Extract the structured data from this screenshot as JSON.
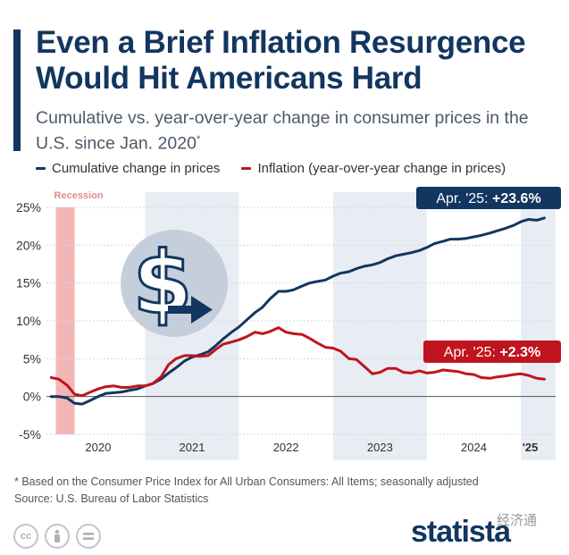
{
  "header": {
    "title": "Even a Brief Inflation Resurgence Would Hit Americans Hard",
    "subtitle": "Cumulative vs. year-over-year change in consumer prices in the U.S. since Jan. 2020",
    "subtitle_mark": "*"
  },
  "footer": {
    "note": "* Based on the Consumer Price Index for All Urban Consumers: All Items; seasonally adjusted",
    "source": "Source: U.S. Bureau of Labor Statistics",
    "brand": "statista",
    "watermark": "经济通"
  },
  "icons": [
    "creative-commons-icon",
    "attribution-icon",
    "no-derivatives-icon",
    "dollar-arrow-icon",
    "brand-logo-icon"
  ],
  "chart_data": {
    "type": "line",
    "title": "Even a Brief Inflation Resurgence Would Hit Americans Hard",
    "subtitle": "Cumulative vs. year-over-year change in consumer prices in the U.S. since Jan. 2020*",
    "y_ticks": [
      "25%",
      "20%",
      "15%",
      "10%",
      "5%",
      "0%",
      "-5%"
    ],
    "y_tick_values": [
      25,
      20,
      15,
      10,
      5,
      0,
      -5
    ],
    "ylim": [
      -5,
      25
    ],
    "x_ticks": [
      "2020",
      "2021",
      "2022",
      "2023",
      "2024",
      "'25"
    ],
    "x_tick_positions": [
      2020.5,
      2021.5,
      2022.5,
      2023.5,
      2024.5,
      2025.1
    ],
    "xlim": [
      2019.95,
      2025.37
    ],
    "shaded_years": [
      [
        2021.0,
        2022.0
      ],
      [
        2023.0,
        2024.0
      ],
      [
        2025.0,
        2025.37
      ]
    ],
    "recession": {
      "label": "Recession",
      "from": 2020.05,
      "to": 2020.25
    },
    "grid": true,
    "legend_position": "top",
    "series": [
      {
        "name": "Cumulative change in prices",
        "color": "#12365f",
        "points": [
          [
            2020.0,
            0.0
          ],
          [
            2020.08,
            0.0
          ],
          [
            2020.17,
            -0.2
          ],
          [
            2020.25,
            -0.9
          ],
          [
            2020.33,
            -1.0
          ],
          [
            2020.42,
            -0.5
          ],
          [
            2020.5,
            0.0
          ],
          [
            2020.58,
            0.4
          ],
          [
            2020.67,
            0.5
          ],
          [
            2020.75,
            0.6
          ],
          [
            2020.83,
            0.8
          ],
          [
            2020.92,
            1.0
          ],
          [
            2021.0,
            1.4
          ],
          [
            2021.08,
            1.7
          ],
          [
            2021.17,
            2.3
          ],
          [
            2021.25,
            3.1
          ],
          [
            2021.33,
            3.8
          ],
          [
            2021.42,
            4.7
          ],
          [
            2021.5,
            5.2
          ],
          [
            2021.58,
            5.5
          ],
          [
            2021.67,
            5.9
          ],
          [
            2021.75,
            6.7
          ],
          [
            2021.83,
            7.6
          ],
          [
            2021.92,
            8.5
          ],
          [
            2022.0,
            9.2
          ],
          [
            2022.08,
            10.1
          ],
          [
            2022.17,
            11.1
          ],
          [
            2022.25,
            11.8
          ],
          [
            2022.33,
            12.9
          ],
          [
            2022.42,
            13.9
          ],
          [
            2022.5,
            13.9
          ],
          [
            2022.58,
            14.1
          ],
          [
            2022.67,
            14.6
          ],
          [
            2022.75,
            15.0
          ],
          [
            2022.83,
            15.2
          ],
          [
            2022.92,
            15.4
          ],
          [
            2023.0,
            15.9
          ],
          [
            2023.08,
            16.3
          ],
          [
            2023.17,
            16.5
          ],
          [
            2023.25,
            16.9
          ],
          [
            2023.33,
            17.2
          ],
          [
            2023.42,
            17.4
          ],
          [
            2023.5,
            17.7
          ],
          [
            2023.58,
            18.2
          ],
          [
            2023.67,
            18.6
          ],
          [
            2023.75,
            18.8
          ],
          [
            2023.83,
            19.0
          ],
          [
            2023.92,
            19.3
          ],
          [
            2024.0,
            19.7
          ],
          [
            2024.08,
            20.2
          ],
          [
            2024.17,
            20.5
          ],
          [
            2024.25,
            20.8
          ],
          [
            2024.33,
            20.8
          ],
          [
            2024.42,
            20.9
          ],
          [
            2024.5,
            21.1
          ],
          [
            2024.58,
            21.3
          ],
          [
            2024.67,
            21.6
          ],
          [
            2024.75,
            21.9
          ],
          [
            2024.83,
            22.2
          ],
          [
            2024.92,
            22.6
          ],
          [
            2025.0,
            23.1
          ],
          [
            2025.08,
            23.4
          ],
          [
            2025.17,
            23.3
          ],
          [
            2025.25,
            23.6
          ]
        ]
      },
      {
        "name": "Inflation (year-over-year change in prices)",
        "color": "#c0151e",
        "points": [
          [
            2020.0,
            2.5
          ],
          [
            2020.08,
            2.3
          ],
          [
            2020.17,
            1.5
          ],
          [
            2020.25,
            0.3
          ],
          [
            2020.33,
            0.1
          ],
          [
            2020.42,
            0.6
          ],
          [
            2020.5,
            1.0
          ],
          [
            2020.58,
            1.3
          ],
          [
            2020.67,
            1.4
          ],
          [
            2020.75,
            1.2
          ],
          [
            2020.83,
            1.2
          ],
          [
            2020.92,
            1.4
          ],
          [
            2021.0,
            1.4
          ],
          [
            2021.08,
            1.7
          ],
          [
            2021.17,
            2.6
          ],
          [
            2021.25,
            4.2
          ],
          [
            2021.33,
            5.0
          ],
          [
            2021.42,
            5.4
          ],
          [
            2021.5,
            5.4
          ],
          [
            2021.58,
            5.3
          ],
          [
            2021.67,
            5.4
          ],
          [
            2021.75,
            6.2
          ],
          [
            2021.83,
            6.9
          ],
          [
            2021.92,
            7.2
          ],
          [
            2022.0,
            7.5
          ],
          [
            2022.08,
            7.9
          ],
          [
            2022.17,
            8.5
          ],
          [
            2022.25,
            8.3
          ],
          [
            2022.33,
            8.6
          ],
          [
            2022.42,
            9.1
          ],
          [
            2022.5,
            8.5
          ],
          [
            2022.58,
            8.3
          ],
          [
            2022.67,
            8.2
          ],
          [
            2022.75,
            7.7
          ],
          [
            2022.83,
            7.1
          ],
          [
            2022.92,
            6.5
          ],
          [
            2023.0,
            6.4
          ],
          [
            2023.08,
            6.0
          ],
          [
            2023.17,
            5.0
          ],
          [
            2023.25,
            4.9
          ],
          [
            2023.33,
            4.0
          ],
          [
            2023.42,
            3.0
          ],
          [
            2023.5,
            3.2
          ],
          [
            2023.58,
            3.7
          ],
          [
            2023.67,
            3.7
          ],
          [
            2023.75,
            3.2
          ],
          [
            2023.83,
            3.1
          ],
          [
            2023.92,
            3.4
          ],
          [
            2024.0,
            3.1
          ],
          [
            2024.08,
            3.2
          ],
          [
            2024.17,
            3.5
          ],
          [
            2024.25,
            3.4
          ],
          [
            2024.33,
            3.3
          ],
          [
            2024.42,
            3.0
          ],
          [
            2024.5,
            2.9
          ],
          [
            2024.58,
            2.5
          ],
          [
            2024.67,
            2.4
          ],
          [
            2024.75,
            2.6
          ],
          [
            2024.83,
            2.7
          ],
          [
            2024.92,
            2.9
          ],
          [
            2025.0,
            3.0
          ],
          [
            2025.08,
            2.8
          ],
          [
            2025.17,
            2.4
          ],
          [
            2025.25,
            2.3
          ]
        ]
      }
    ],
    "annotations": [
      {
        "series": "Cumulative change in prices",
        "prefix": "Apr. '25: ",
        "value": "+23.6%",
        "x": 2025.25,
        "y": 23.6
      },
      {
        "series": "Inflation (year-over-year change in prices)",
        "prefix": "Apr. '25: ",
        "value": "+2.3%",
        "x": 2025.25,
        "y": 2.3
      }
    ]
  }
}
